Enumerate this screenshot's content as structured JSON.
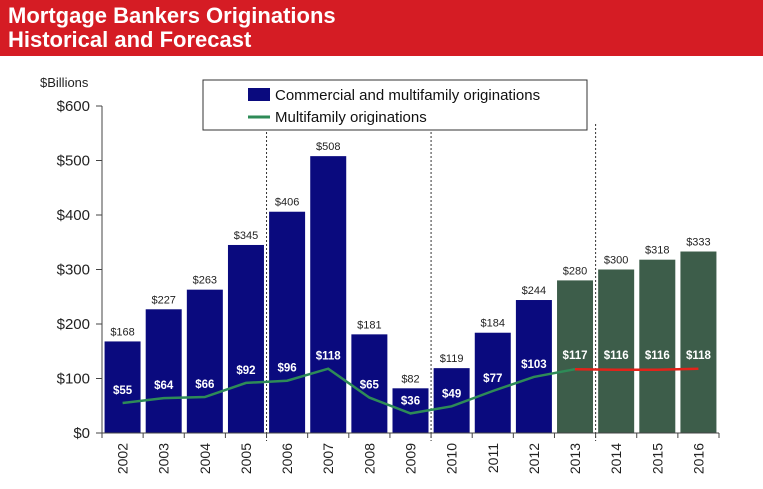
{
  "title": {
    "line1": "Mortgage Bankers Originations",
    "line2": "Historical and Forecast"
  },
  "colors": {
    "banner": "#d51c24",
    "historical_bar": "#0a0a7e",
    "forecast_bar": "#3d5d4a",
    "multifamily_line": "#2e8b57",
    "forecast_line": "#e2231a",
    "text": "#222222"
  },
  "chart_data": {
    "type": "bar",
    "title": "Mortgage Bankers Originations Historical and Forecast",
    "ylabel": "$Billions",
    "xlabel": "",
    "ylim": [
      0,
      600
    ],
    "yticks": [
      0,
      100,
      200,
      300,
      400,
      500,
      600
    ],
    "ytick_labels": [
      "$0",
      "$100",
      "$200",
      "$300",
      "$400",
      "$500",
      "$600"
    ],
    "categories": [
      "2002",
      "2003",
      "2004",
      "2005",
      "2006",
      "2007",
      "2008",
      "2009",
      "2010",
      "2011",
      "2012",
      "2013",
      "2014",
      "2015",
      "2016"
    ],
    "forecast_start": "2013",
    "dividers_before": [
      "2006",
      "2010",
      "2014"
    ],
    "legend_position": "top-center",
    "series": [
      {
        "name": "Commercial and multifamily originations",
        "kind": "bar",
        "values": [
          168,
          227,
          263,
          345,
          406,
          508,
          181,
          82,
          119,
          184,
          244,
          280,
          300,
          318,
          333
        ],
        "labels": [
          "$168",
          "$227",
          "$263",
          "$345",
          "$406",
          "$508",
          "$181",
          "$82",
          "$119",
          "$184",
          "$244",
          "$280",
          "$300",
          "$318",
          "$333"
        ]
      },
      {
        "name": "Multifamily originations",
        "kind": "line",
        "values": [
          55,
          64,
          66,
          92,
          96,
          118,
          65,
          36,
          49,
          77,
          103,
          117,
          116,
          116,
          118
        ],
        "labels": [
          "$55",
          "$64",
          "$66",
          "$92",
          "$96",
          "$118",
          "$65",
          "$36",
          "$49",
          "$77",
          "$103",
          "$117",
          "$116",
          "$116",
          "$118"
        ]
      }
    ]
  }
}
